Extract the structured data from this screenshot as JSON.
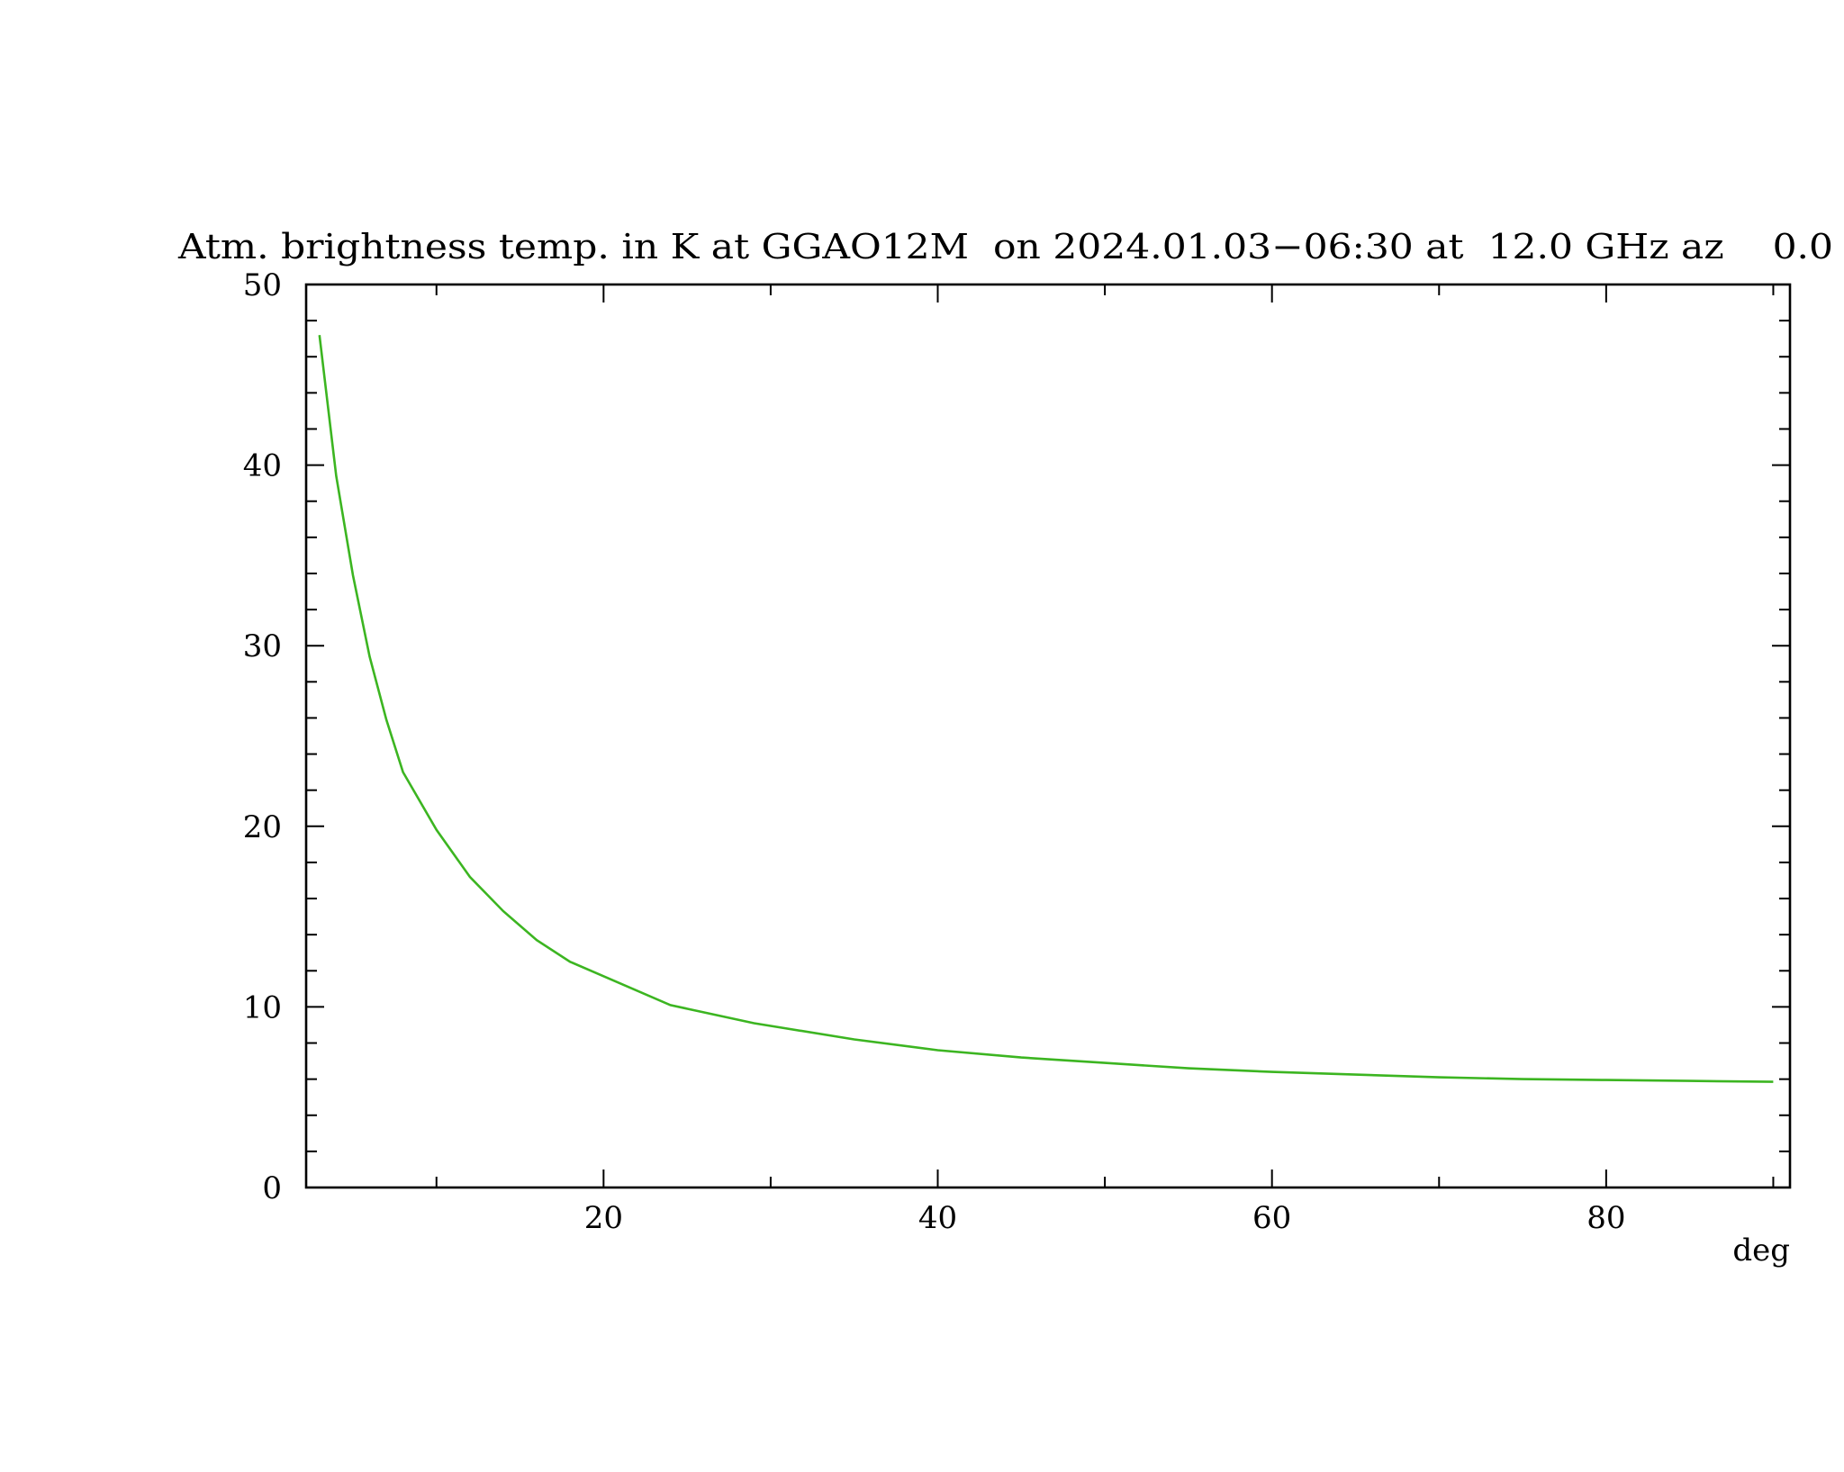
{
  "chart_data": {
    "type": "line",
    "title": "Atm. brightness temp. in K at GGAO12M  on 2024.01.03−06:30 at  12.0 GHz az    0.0",
    "xlabel": "deg",
    "ylabel": "",
    "xlim": [
      2.2,
      91
    ],
    "ylim": [
      0,
      50
    ],
    "x_ticks_major": [
      20,
      40,
      60,
      80
    ],
    "x_ticks_minor": [
      10,
      30,
      50,
      70,
      90
    ],
    "x_tick_labels": [
      "20",
      "40",
      "60",
      "80"
    ],
    "y_ticks_major": [
      0,
      10,
      20,
      30,
      40,
      50
    ],
    "y_tick_labels": [
      "0",
      "10",
      "20",
      "30",
      "40",
      "50"
    ],
    "y_minor_step": 2,
    "grid": false,
    "line_color": "#3cb521",
    "series": [
      {
        "x": [
          3,
          4,
          5,
          6,
          7,
          8,
          10,
          12,
          14,
          16,
          18,
          20,
          24,
          29,
          35,
          40,
          45,
          50,
          55,
          60,
          65,
          70,
          75,
          80,
          85,
          90
        ],
        "values": [
          47.2,
          39.4,
          33.9,
          29.4,
          25.9,
          23.0,
          19.8,
          17.2,
          15.3,
          13.7,
          12.5,
          11.7,
          10.1,
          9.1,
          8.2,
          7.6,
          7.2,
          6.9,
          6.6,
          6.4,
          6.25,
          6.1,
          6.0,
          5.95,
          5.9,
          5.85
        ]
      }
    ]
  }
}
